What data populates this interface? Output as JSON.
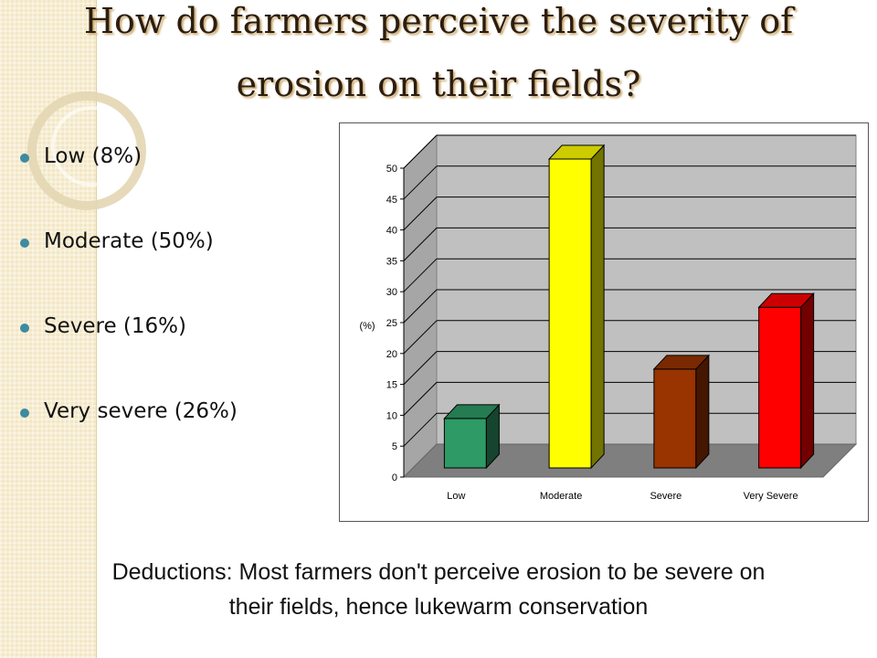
{
  "title": {
    "line1": "How do farmers perceive the severity of",
    "line2": "erosion on their fields?"
  },
  "bullets": [
    {
      "text": "Low (8%)"
    },
    {
      "text": "Moderate (50%)"
    },
    {
      "text": "Severe (16%)"
    },
    {
      "text": "Very severe (26%)"
    }
  ],
  "chart_data": {
    "type": "bar",
    "categories": [
      "Low",
      "Moderate",
      "Severe",
      "Very Severe"
    ],
    "values": [
      8,
      50,
      16,
      26
    ],
    "colors": [
      "#2e9a66",
      "#ffff00",
      "#993300",
      "#ff0000"
    ],
    "ylabel": "(%)",
    "xlabel": "",
    "ylim": [
      0,
      50
    ],
    "yticks": [
      0,
      5,
      10,
      15,
      20,
      25,
      30,
      35,
      40,
      45,
      50
    ],
    "grid": true,
    "style": "3d"
  },
  "deductions": {
    "line1": "Deductions: Most farmers don't perceive erosion to be severe on",
    "line2": "their fields, hence lukewarm conservation"
  }
}
